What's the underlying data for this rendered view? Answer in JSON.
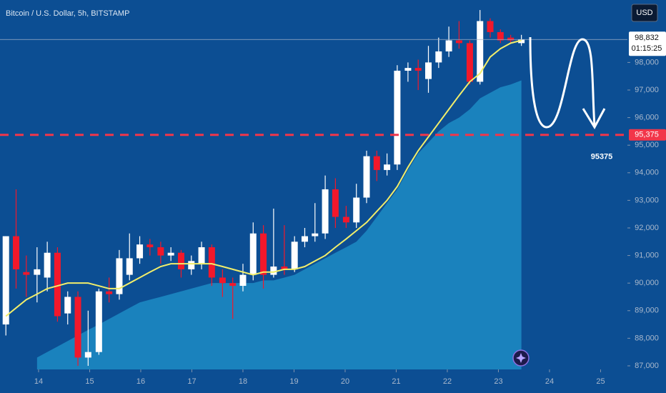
{
  "chart_data": {
    "type": "candlestick",
    "title": "Bitcoin / U.S. Dollar, 5h, BITSTAMP",
    "currency": "USD",
    "x": [
      13.36,
      13.56,
      13.76,
      13.97,
      14.17,
      14.37,
      14.57,
      14.77,
      14.97,
      15.18,
      15.38,
      15.58,
      15.78,
      15.98,
      16.18,
      16.39,
      16.59,
      16.79,
      16.99,
      17.19,
      17.39,
      17.6,
      17.8,
      18.0,
      18.2,
      18.4,
      18.6,
      18.81,
      19.01,
      19.21,
      19.41,
      19.61,
      19.81,
      20.02,
      20.22,
      20.42,
      20.62,
      20.82,
      21.02,
      21.23,
      21.43,
      21.63,
      21.83,
      22.03,
      22.23,
      22.44,
      22.64,
      22.84,
      23.04,
      23.24,
      23.45
    ],
    "open": [
      88500,
      91700,
      90400,
      90300,
      90200,
      91100,
      88900,
      89500,
      87300,
      87500,
      89700,
      89600,
      90300,
      90900,
      91400,
      91300,
      91000,
      91100,
      90500,
      90700,
      91300,
      90200,
      90000,
      89900,
      90300,
      91800,
      90300,
      90600,
      90500,
      91500,
      91700,
      91800,
      93400,
      92400,
      92200,
      93100,
      94600,
      94100,
      94300,
      97700,
      97800,
      97400,
      98000,
      98400,
      98800,
      98700,
      97300,
      99500,
      99100,
      98900,
      98700
    ],
    "high": [
      91700,
      93400,
      91000,
      91300,
      91500,
      91300,
      89700,
      89700,
      89000,
      89800,
      90200,
      91200,
      91800,
      91700,
      91600,
      91500,
      91300,
      91200,
      91000,
      91500,
      91400,
      90500,
      90200,
      90700,
      92200,
      92100,
      92700,
      92100,
      91700,
      92000,
      92900,
      93900,
      93800,
      92800,
      93600,
      94800,
      94800,
      94700,
      97900,
      98000,
      98100,
      98600,
      98900,
      99300,
      99500,
      98800,
      99900,
      99600,
      99200,
      99000,
      99000
    ],
    "low": [
      88100,
      89800,
      89500,
      89300,
      89700,
      88600,
      88500,
      87000,
      87000,
      87400,
      89300,
      89400,
      90100,
      90700,
      91000,
      90700,
      90800,
      90200,
      90300,
      90500,
      89900,
      89500,
      88700,
      89700,
      90100,
      89800,
      90200,
      90300,
      90400,
      91300,
      91500,
      91600,
      92000,
      92000,
      92000,
      92900,
      93700,
      93900,
      94100,
      97300,
      97000,
      96900,
      97800,
      98200,
      98500,
      97200,
      97200,
      98900,
      98700,
      98700,
      98600
    ],
    "close": [
      91700,
      90500,
      90300,
      90500,
      91100,
      88800,
      89500,
      87300,
      87500,
      89700,
      89600,
      90900,
      90900,
      91400,
      91300,
      91000,
      91100,
      90500,
      90800,
      91300,
      90200,
      90000,
      89900,
      90300,
      91800,
      90300,
      90600,
      90500,
      91500,
      91700,
      91800,
      93400,
      92400,
      92200,
      93100,
      94600,
      94100,
      94300,
      97700,
      97800,
      97700,
      98000,
      98400,
      98800,
      98700,
      97300,
      99500,
      99100,
      98800,
      98800,
      98832
    ],
    "up_color": "#ffffff",
    "down_color": "#f2182b",
    "moving_average": {
      "color": "#f2ee6a",
      "values": [
        88800,
        89100,
        89400,
        89600,
        89800,
        89900,
        90000,
        90000,
        90000,
        89900,
        89800,
        89800,
        90000,
        90200,
        90400,
        90600,
        90700,
        90700,
        90700,
        90700,
        90700,
        90600,
        90500,
        90400,
        90300,
        90400,
        90400,
        90500,
        90500,
        90600,
        90800,
        91000,
        91300,
        91600,
        91900,
        92200,
        92600,
        93000,
        93500,
        94200,
        94800,
        95300,
        95800,
        96300,
        96800,
        97300,
        97600,
        98200,
        98500,
        98700,
        98800
      ]
    },
    "area": {
      "color": "#1d8cc4",
      "values": [
        null,
        null,
        null,
        87300,
        87500,
        87700,
        87900,
        88100,
        88300,
        88500,
        88700,
        88900,
        89100,
        89300,
        89400,
        89500,
        89600,
        89700,
        89800,
        89900,
        90000,
        90000,
        90000,
        90000,
        90000,
        90100,
        90100,
        90200,
        90300,
        90500,
        90700,
        90900,
        91100,
        91300,
        91500,
        91900,
        92400,
        92900,
        93400,
        94100,
        94700,
        95100,
        95500,
        95800,
        96000,
        96300,
        96700,
        96900,
        97100,
        97200,
        97350
      ]
    },
    "last_price": {
      "value": 98832,
      "label": "98,832"
    },
    "countdown": "01:15:25",
    "level": {
      "value": 95375,
      "label": "95,375",
      "color": "#f2364a"
    },
    "annotation": "95375",
    "xlim": [
      13.245,
      25.525
    ],
    "ylim": [
      86870,
      100264
    ],
    "xticks": [
      14,
      15,
      16,
      17,
      18,
      19,
      20,
      21,
      22,
      23,
      24,
      25
    ],
    "yticks": [
      {
        "value": 87000,
        "label": "87,000"
      },
      {
        "value": 88000,
        "label": "88,000"
      },
      {
        "value": 89000,
        "label": "89,000"
      },
      {
        "value": 90000,
        "label": "90,000"
      },
      {
        "value": 91000,
        "label": "91,000"
      },
      {
        "value": 92000,
        "label": "92,000"
      },
      {
        "value": 93000,
        "label": "93,000"
      },
      {
        "value": 94000,
        "label": "94,000"
      },
      {
        "value": 95000,
        "label": "95,000"
      },
      {
        "value": 96000,
        "label": "96,000"
      },
      {
        "value": 97000,
        "label": "97,000"
      },
      {
        "value": 98000,
        "label": "98,000"
      }
    ]
  }
}
